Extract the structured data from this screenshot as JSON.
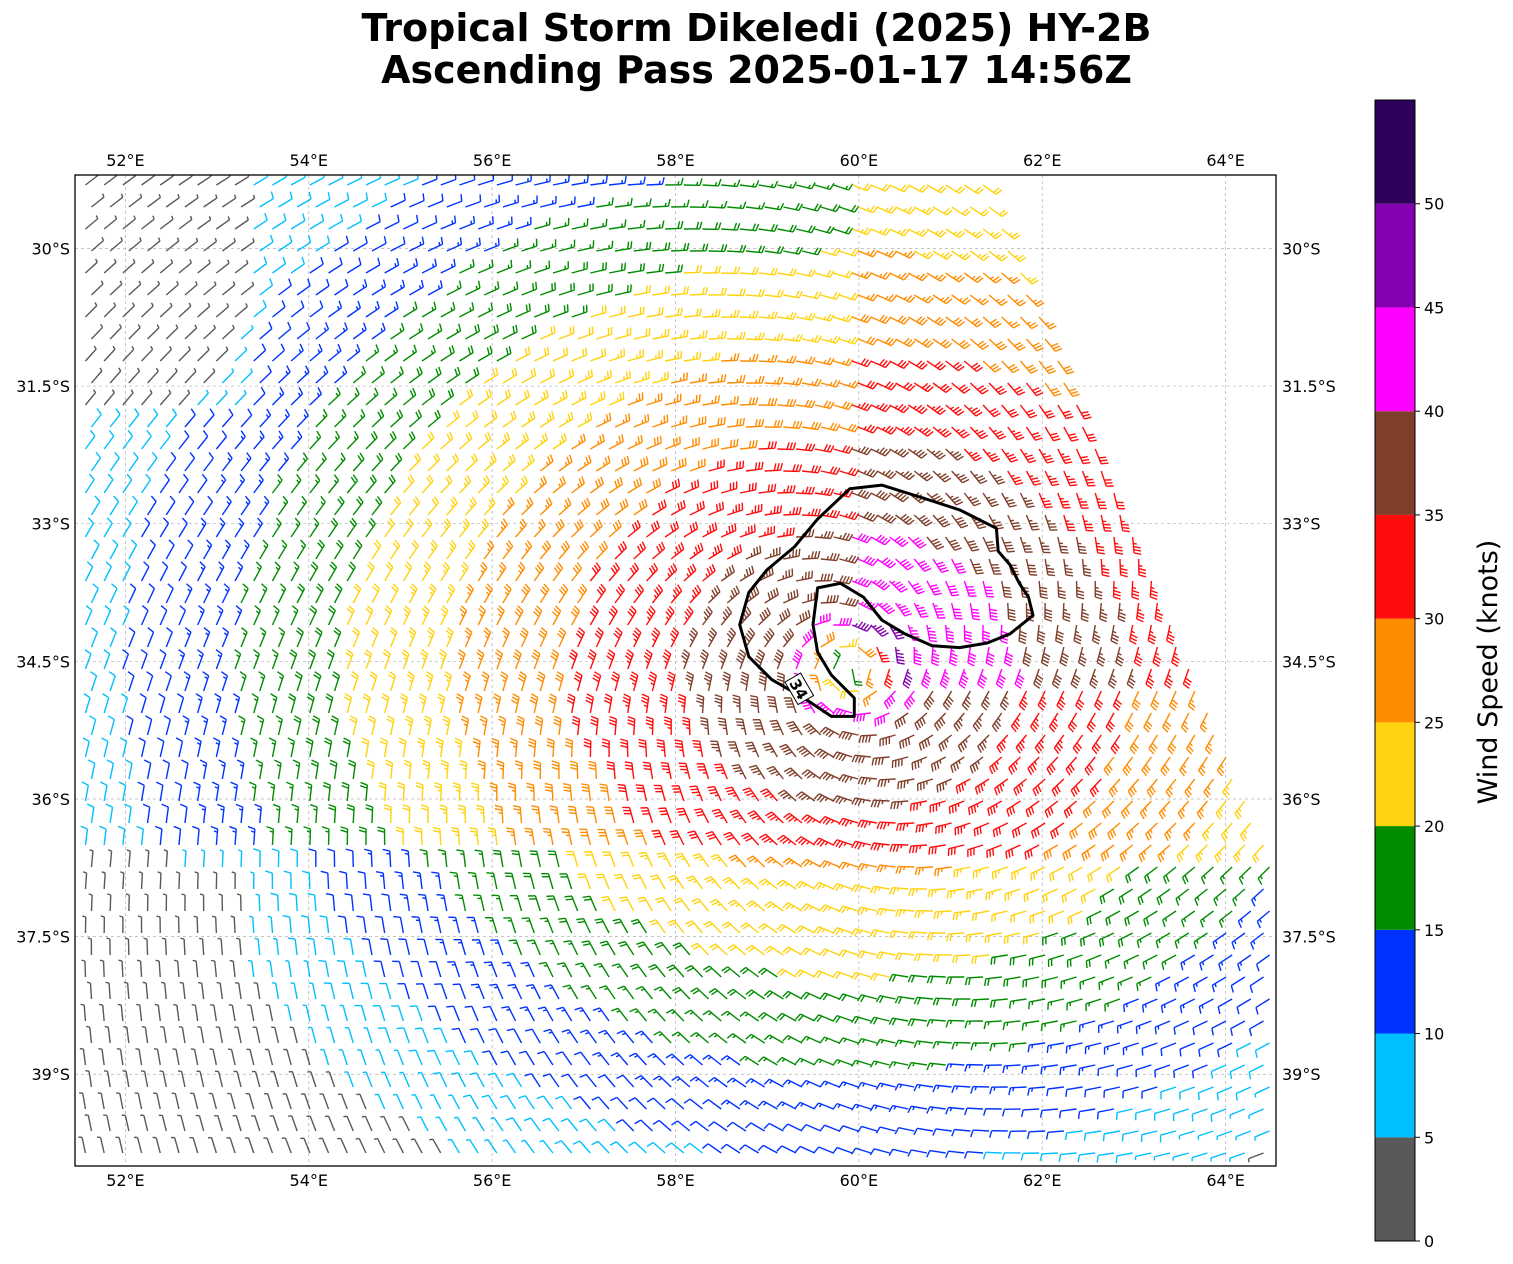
{
  "title": {
    "line1": "Tropical Storm Dikeledi (2025) HY-2B",
    "line2": "Ascending Pass 2025-01-17 14:56Z"
  },
  "map": {
    "lon_range": [
      51.45,
      64.55
    ],
    "lat_range": [
      -40.0,
      -29.2
    ],
    "lon_ticks": [
      52,
      54,
      56,
      58,
      60,
      62,
      64
    ],
    "lon_tick_labels": [
      "52°E",
      "54°E",
      "56°E",
      "58°E",
      "60°E",
      "62°E",
      "64°E"
    ],
    "lat_ticks": [
      -30,
      -31.5,
      -33,
      -34.5,
      -36,
      -37.5,
      -39
    ],
    "lat_tick_labels": [
      "30°S",
      "31.5°S",
      "33°S",
      "34.5°S",
      "36°S",
      "37.5°S",
      "39°S"
    ],
    "gridlines": true,
    "storm_center": {
      "lon": 59.9,
      "lat": -34.6
    },
    "contour_34kt": {
      "label": "34",
      "outer": [
        [
          59.9,
          -32.62
        ],
        [
          60.25,
          -32.58
        ],
        [
          60.7,
          -32.72
        ],
        [
          61.1,
          -32.85
        ],
        [
          61.5,
          -33.05
        ],
        [
          61.52,
          -33.3
        ],
        [
          61.65,
          -33.45
        ],
        [
          61.75,
          -33.65
        ],
        [
          61.85,
          -33.8
        ],
        [
          61.9,
          -34.0
        ],
        [
          61.65,
          -34.2
        ],
        [
          61.4,
          -34.3
        ],
        [
          61.1,
          -34.35
        ],
        [
          60.8,
          -34.33
        ],
        [
          60.5,
          -34.2
        ],
        [
          60.25,
          -34.05
        ],
        [
          60.05,
          -33.8
        ],
        [
          59.8,
          -33.65
        ],
        [
          59.55,
          -33.7
        ],
        [
          59.5,
          -34.1
        ],
        [
          59.55,
          -34.4
        ],
        [
          59.7,
          -34.65
        ],
        [
          59.95,
          -34.9
        ],
        [
          59.95,
          -35.1
        ],
        [
          59.7,
          -35.1
        ],
        [
          59.4,
          -34.9
        ],
        [
          59.05,
          -34.7
        ],
        [
          58.8,
          -34.45
        ],
        [
          58.7,
          -34.1
        ],
        [
          58.8,
          -33.75
        ],
        [
          59.0,
          -33.5
        ],
        [
          59.3,
          -33.25
        ],
        [
          59.55,
          -32.95
        ]
      ]
    },
    "wind_field": {
      "cyclonic_sense": "clockwise",
      "speed_unit": "knots"
    }
  },
  "colorbar": {
    "label": "Wind Speed (knots)",
    "range": [
      0,
      55
    ],
    "bins": [
      {
        "min": 0,
        "max": 5,
        "color": "#595959"
      },
      {
        "min": 5,
        "max": 10,
        "color": "#00bfff"
      },
      {
        "min": 10,
        "max": 15,
        "color": "#0033ff"
      },
      {
        "min": 15,
        "max": 20,
        "color": "#008c00"
      },
      {
        "min": 20,
        "max": 25,
        "color": "#ffd20f"
      },
      {
        "min": 25,
        "max": 30,
        "color": "#ff8c00"
      },
      {
        "min": 30,
        "max": 35,
        "color": "#ff0d0d"
      },
      {
        "min": 35,
        "max": 40,
        "color": "#803f2a"
      },
      {
        "min": 40,
        "max": 45,
        "color": "#ff00ff"
      },
      {
        "min": 45,
        "max": 50,
        "color": "#8400b0"
      },
      {
        "min": 50,
        "max": 55,
        "color": "#2d005c"
      }
    ],
    "ticks": [
      0,
      5,
      10,
      15,
      20,
      25,
      30,
      35,
      40,
      45,
      50
    ],
    "tick_labels": [
      "0",
      "5",
      "10",
      "15",
      "20",
      "25",
      "30",
      "35",
      "40",
      "45",
      "50"
    ]
  }
}
